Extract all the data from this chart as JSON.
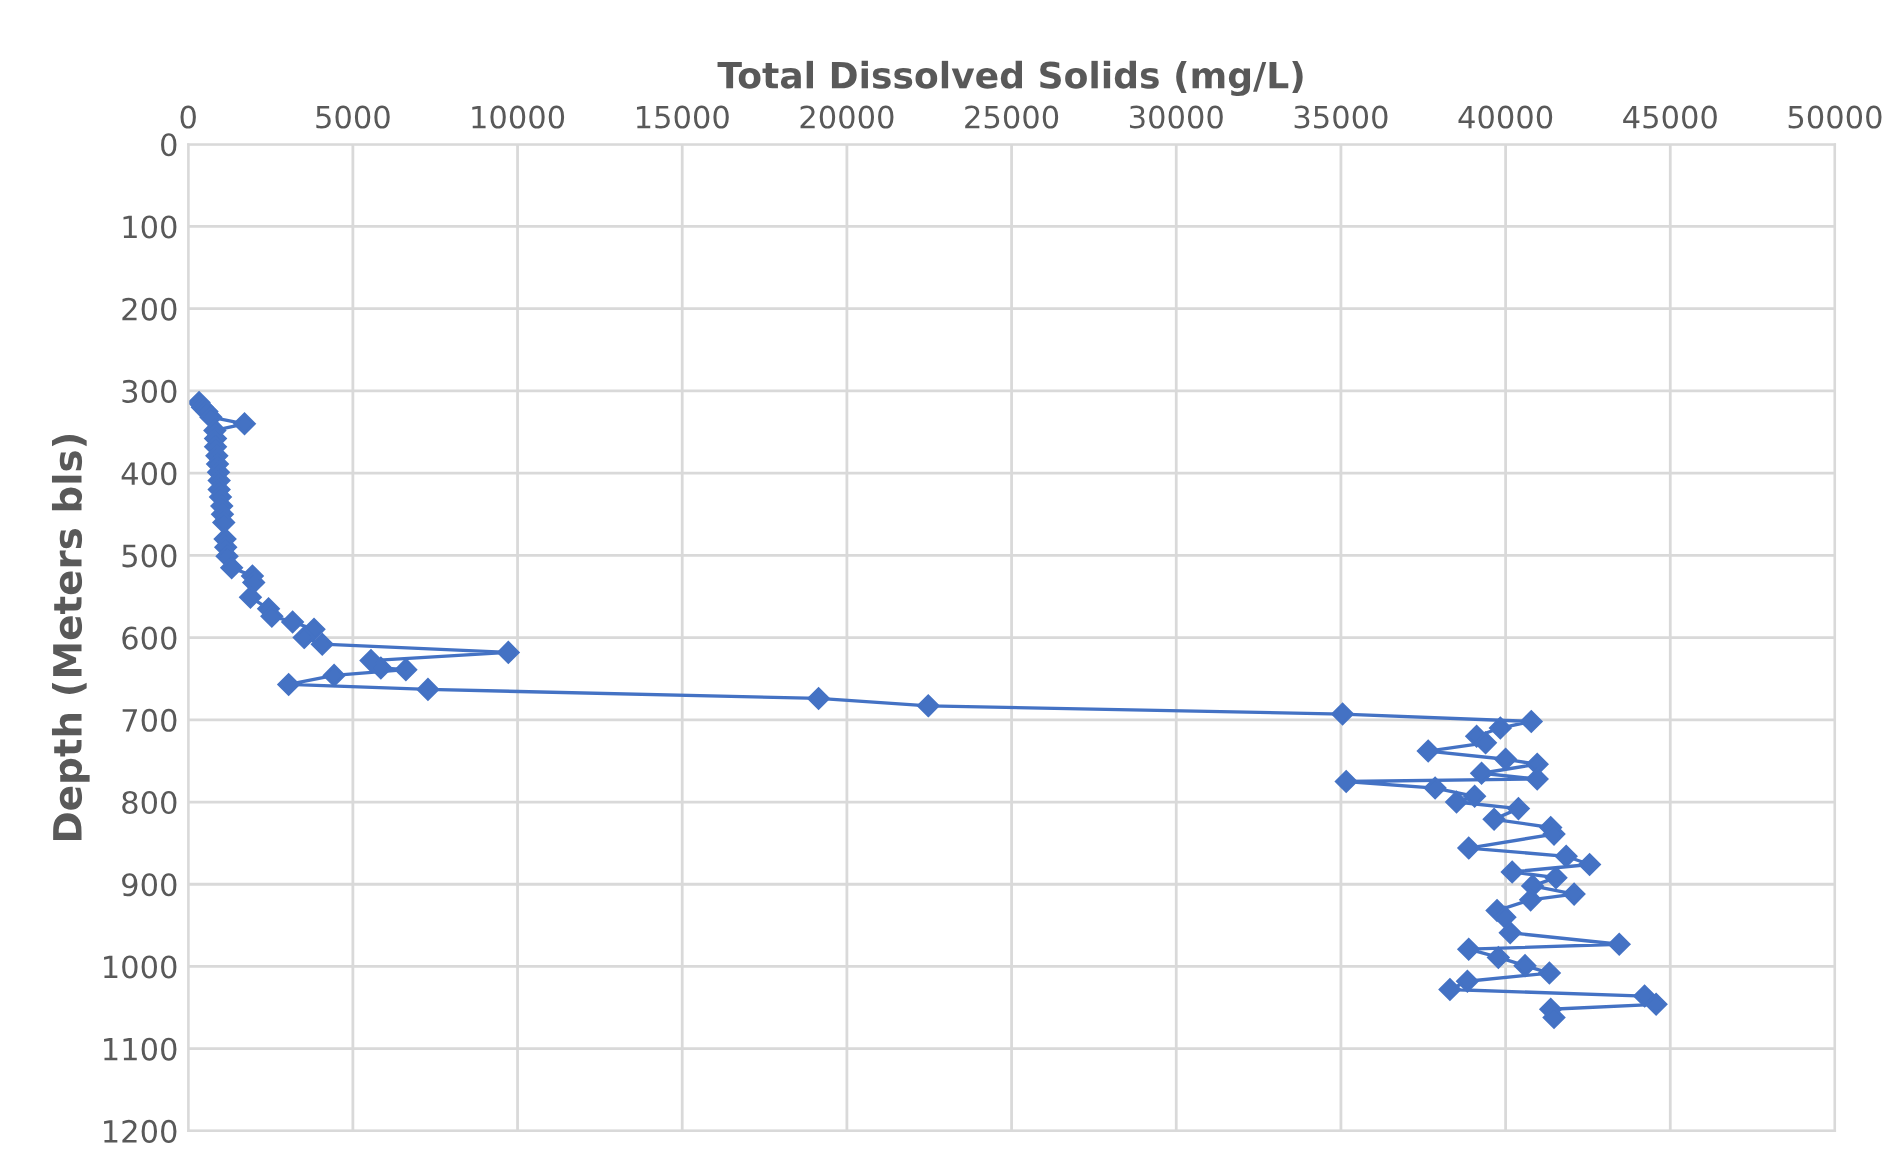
{
  "chart_data": {
    "type": "line",
    "xlabel": "Total Dissolved Solids (mg/L)",
    "ylabel": "Depth (Meters bls)",
    "xlim": [
      0,
      50000
    ],
    "xticks": [
      0,
      5000,
      10000,
      15000,
      20000,
      25000,
      30000,
      35000,
      40000,
      45000,
      50000
    ],
    "ylim": [
      1200,
      0
    ],
    "yticks": [
      0,
      100,
      200,
      300,
      400,
      500,
      600,
      700,
      800,
      900,
      1000,
      1100,
      1200
    ],
    "grid": true,
    "marker": "diamond",
    "line_style": "solid",
    "series": [
      {
        "color": "#4472c4",
        "x": [
          330,
          430,
          570,
          690,
          1710,
          810,
          830,
          830,
          870,
          890,
          920,
          940,
          940,
          980,
          1020,
          1040,
          1080,
          1120,
          1140,
          1180,
          1320,
          1950,
          1990,
          1890,
          2440,
          2540,
          3170,
          3820,
          3520,
          4070,
          9720,
          5550,
          5850,
          6610,
          4430,
          3050,
          7280,
          19140,
          22470,
          35050,
          40780,
          39840,
          39120,
          39390,
          37650,
          40000,
          40960,
          39270,
          40960,
          35160,
          37860,
          39060,
          38510,
          40390,
          39650,
          41370,
          41470,
          38880,
          41840,
          42550,
          40200,
          41530,
          40820,
          42080,
          40760,
          39740,
          39980,
          40140,
          43450,
          38880,
          39780,
          40590,
          41330,
          38840,
          38310,
          44220,
          44570,
          41370,
          41470
        ],
        "values": [
          314,
          320,
          325,
          332,
          340,
          348,
          358,
          368,
          379,
          389,
          399,
          409,
          420,
          429,
          440,
          450,
          460,
          480,
          490,
          501,
          515,
          525,
          533,
          551,
          565,
          574,
          581,
          590,
          600,
          608,
          618,
          628,
          637,
          639,
          646,
          657,
          663,
          674,
          683,
          693,
          702,
          710,
          720,
          728,
          738,
          748,
          754,
          765,
          772,
          775,
          783,
          793,
          800,
          808,
          821,
          831,
          839,
          856,
          866,
          876,
          885,
          892,
          902,
          912,
          919,
          932,
          940,
          959,
          973,
          979,
          989,
          999,
          1008,
          1018,
          1028,
          1036,
          1046,
          1052,
          1062
        ]
      }
    ]
  }
}
